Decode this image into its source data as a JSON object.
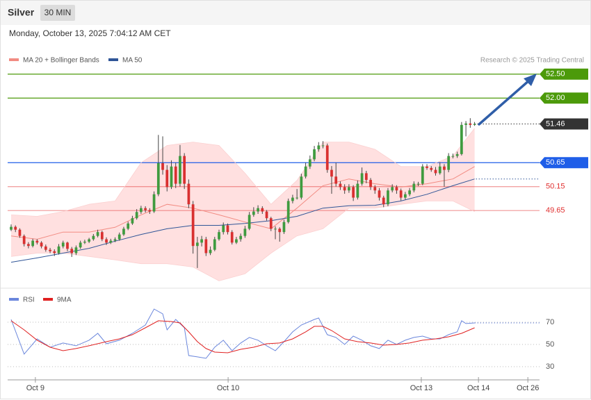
{
  "chart_data": {
    "type": "candlestick",
    "title": "Silver",
    "interval": "30 MIN",
    "timestamp": "Monday, October 13, 2025 7:04:12 AM CET",
    "source": "Research © 2025 Trading Central",
    "xlim": [
      -0.8,
      122
    ],
    "xticks": [
      {
        "value": 5.6,
        "label": "Oct 9"
      },
      {
        "value": 50.1,
        "label": "Oct 10"
      },
      {
        "value": 94.7,
        "label": "Oct 13"
      },
      {
        "value": 107.9,
        "label": "Oct 14"
      },
      {
        "value": 119.3,
        "label": "Oct 26"
      }
    ],
    "ylim": [
      48.1,
      52.7
    ],
    "up_color": "#3f9b3f",
    "down_color": "#d93030",
    "ohlc": [
      [
        49.25,
        49.36,
        49.22,
        49.31
      ],
      [
        49.31,
        49.34,
        49.2,
        49.25
      ],
      [
        49.25,
        49.28,
        49.08,
        49.12
      ],
      [
        49.12,
        49.15,
        48.9,
        48.95
      ],
      [
        48.95,
        48.99,
        48.86,
        48.91
      ],
      [
        48.91,
        49.06,
        48.88,
        49.02
      ],
      [
        49.02,
        49.05,
        48.94,
        48.98
      ],
      [
        48.98,
        49.01,
        48.86,
        48.9
      ],
      [
        48.9,
        48.94,
        48.79,
        48.83
      ],
      [
        48.83,
        48.87,
        48.76,
        48.8
      ],
      [
        48.8,
        48.84,
        48.7,
        48.76
      ],
      [
        48.76,
        48.95,
        48.73,
        48.9
      ],
      [
        48.9,
        49.02,
        48.86,
        48.98
      ],
      [
        48.98,
        49.0,
        48.8,
        48.85
      ],
      [
        48.85,
        48.89,
        48.68,
        48.76
      ],
      [
        48.76,
        48.92,
        48.72,
        48.88
      ],
      [
        48.88,
        49.02,
        48.85,
        48.98
      ],
      [
        48.98,
        49.04,
        48.95,
        49.0
      ],
      [
        49.0,
        49.08,
        48.97,
        49.05
      ],
      [
        49.05,
        49.16,
        49.02,
        49.12
      ],
      [
        49.12,
        49.25,
        49.09,
        49.2
      ],
      [
        49.2,
        49.23,
        49.01,
        49.05
      ],
      [
        49.05,
        49.09,
        48.93,
        48.98
      ],
      [
        48.98,
        49.06,
        48.95,
        49.02
      ],
      [
        49.02,
        49.09,
        48.99,
        49.05
      ],
      [
        49.05,
        49.19,
        49.02,
        49.15
      ],
      [
        49.15,
        49.31,
        49.12,
        49.27
      ],
      [
        49.27,
        49.42,
        49.24,
        49.38
      ],
      [
        49.38,
        49.54,
        49.35,
        49.49
      ],
      [
        49.49,
        49.68,
        49.46,
        49.62
      ],
      [
        49.62,
        49.75,
        49.58,
        49.7
      ],
      [
        49.7,
        49.74,
        49.61,
        49.66
      ],
      [
        49.66,
        49.7,
        49.58,
        49.63
      ],
      [
        49.63,
        50.05,
        49.6,
        49.99
      ],
      [
        49.99,
        51.23,
        49.95,
        50.64
      ],
      [
        50.64,
        51.2,
        50.4,
        50.5
      ],
      [
        50.5,
        50.6,
        50.05,
        50.14
      ],
      [
        50.14,
        50.7,
        50.1,
        50.57
      ],
      [
        50.57,
        50.65,
        50.12,
        50.21
      ],
      [
        50.21,
        51.02,
        50.15,
        50.79
      ],
      [
        50.79,
        50.85,
        50.1,
        50.21
      ],
      [
        50.21,
        50.3,
        49.7,
        49.78
      ],
      [
        49.78,
        49.85,
        48.75,
        48.91
      ],
      [
        48.91,
        49.1,
        48.45,
        48.98
      ],
      [
        48.98,
        49.12,
        48.9,
        49.05
      ],
      [
        49.05,
        49.1,
        48.7,
        48.76
      ],
      [
        48.76,
        48.9,
        48.72,
        48.83
      ],
      [
        48.83,
        49.1,
        48.8,
        49.05
      ],
      [
        49.05,
        49.25,
        49.02,
        49.2
      ],
      [
        49.2,
        49.4,
        49.15,
        49.34
      ],
      [
        49.34,
        49.38,
        49.15,
        49.2
      ],
      [
        49.2,
        49.24,
        48.94,
        48.98
      ],
      [
        48.98,
        49.1,
        48.95,
        49.05
      ],
      [
        49.05,
        49.17,
        49.0,
        49.12
      ],
      [
        49.12,
        49.33,
        49.08,
        49.27
      ],
      [
        49.27,
        49.62,
        49.24,
        49.56
      ],
      [
        49.56,
        49.72,
        49.52,
        49.63
      ],
      [
        49.63,
        49.76,
        49.58,
        49.7
      ],
      [
        49.7,
        49.74,
        49.58,
        49.63
      ],
      [
        49.63,
        49.66,
        49.44,
        49.49
      ],
      [
        49.49,
        49.52,
        49.22,
        49.27
      ],
      [
        49.27,
        49.32,
        49.05,
        49.27
      ],
      [
        49.27,
        49.3,
        49.0,
        49.2
      ],
      [
        49.2,
        49.46,
        49.16,
        49.41
      ],
      [
        49.41,
        49.9,
        49.38,
        49.85
      ],
      [
        49.85,
        49.98,
        49.8,
        49.92
      ],
      [
        49.92,
        50.1,
        49.88,
        49.92
      ],
      [
        49.92,
        50.42,
        49.88,
        50.36
      ],
      [
        50.36,
        50.65,
        50.32,
        50.57
      ],
      [
        50.57,
        50.8,
        50.52,
        50.72
      ],
      [
        50.72,
        51.0,
        50.68,
        50.93
      ],
      [
        50.93,
        51.08,
        50.88,
        51.01
      ],
      [
        51.01,
        51.1,
        50.95,
        51.01
      ],
      [
        51.01,
        51.05,
        50.44,
        50.5
      ],
      [
        50.5,
        50.58,
        50.0,
        50.36
      ],
      [
        50.36,
        50.65,
        50.15,
        50.21
      ],
      [
        50.21,
        50.26,
        50.08,
        50.14
      ],
      [
        50.14,
        50.2,
        50.0,
        50.07
      ],
      [
        50.07,
        50.2,
        50.02,
        50.14
      ],
      [
        50.14,
        50.18,
        49.85,
        49.92
      ],
      [
        49.92,
        50.28,
        49.88,
        50.21
      ],
      [
        50.21,
        50.55,
        50.17,
        50.43
      ],
      [
        50.43,
        50.48,
        50.22,
        50.29
      ],
      [
        50.29,
        50.33,
        50.08,
        50.14
      ],
      [
        50.14,
        50.18,
        50.0,
        50.07
      ],
      [
        50.07,
        50.12,
        49.86,
        49.92
      ],
      [
        49.92,
        49.96,
        49.72,
        49.78
      ],
      [
        49.78,
        50.12,
        49.74,
        50.07
      ],
      [
        50.07,
        50.2,
        50.03,
        50.14
      ],
      [
        50.14,
        50.18,
        50.0,
        50.07
      ],
      [
        50.07,
        50.11,
        49.86,
        49.92
      ],
      [
        49.92,
        50.04,
        49.88,
        49.99
      ],
      [
        49.99,
        50.12,
        49.95,
        50.07
      ],
      [
        50.07,
        50.26,
        50.03,
        50.21
      ],
      [
        50.21,
        50.25,
        50.16,
        50.21
      ],
      [
        50.21,
        50.62,
        50.18,
        50.57
      ],
      [
        50.57,
        50.62,
        50.5,
        50.54
      ],
      [
        50.54,
        50.58,
        50.46,
        50.5
      ],
      [
        50.5,
        50.56,
        50.38,
        50.43
      ],
      [
        50.43,
        50.66,
        50.4,
        50.57
      ],
      [
        50.57,
        50.62,
        50.15,
        50.5
      ],
      [
        50.5,
        50.85,
        50.45,
        50.79
      ],
      [
        50.79,
        50.84,
        50.74,
        50.79
      ],
      [
        50.79,
        50.88,
        50.75,
        50.83
      ],
      [
        50.83,
        51.5,
        50.8,
        51.44
      ],
      [
        51.44,
        51.52,
        51.2,
        51.47
      ],
      [
        51.47,
        51.58,
        51.38,
        51.44
      ],
      [
        51.44,
        51.5,
        51.42,
        51.46
      ]
    ],
    "overlays": {
      "x": [
        0,
        6,
        12,
        18,
        24,
        30,
        36,
        42,
        48,
        54,
        60,
        66,
        72,
        78,
        84,
        90,
        96,
        102,
        107
      ],
      "band_color": "#ffe0e0",
      "upper": [
        49.56,
        49.53,
        49.63,
        49.78,
        49.85,
        50.65,
        51.01,
        51.08,
        51.01,
        50.43,
        49.78,
        50.28,
        51.08,
        51.08,
        50.93,
        50.57,
        50.57,
        50.79,
        51.37
      ],
      "lower": [
        48.69,
        48.76,
        48.76,
        48.69,
        48.62,
        48.54,
        48.54,
        48.47,
        48.18,
        48.33,
        48.76,
        49.12,
        49.27,
        49.7,
        49.7,
        49.78,
        49.85,
        49.85,
        49.63
      ],
      "ma20": {
        "name": "MA 20 + Bollinger Bands",
        "color": "#f28b82",
        "values": [
          49.12,
          49.05,
          49.2,
          49.2,
          49.3,
          49.56,
          49.78,
          49.7,
          49.56,
          49.41,
          49.27,
          49.7,
          50.17,
          50.31,
          50.21,
          50.14,
          50.21,
          50.31,
          50.57
        ]
      },
      "ma50": {
        "name": "MA 50",
        "color": "#2f5597",
        "values": [
          48.57,
          48.66,
          48.76,
          48.86,
          49.01,
          49.15,
          49.27,
          49.34,
          49.34,
          49.38,
          49.44,
          49.53,
          49.7,
          49.75,
          49.76,
          49.85,
          49.99,
          50.17,
          50.31
        ]
      }
    },
    "levels": [
      {
        "value": 52.5,
        "label": "52.50",
        "color": "#4c9a0a",
        "filled": true,
        "line": "solid"
      },
      {
        "value": 52.0,
        "label": "52.00",
        "color": "#4c9a0a",
        "filled": true,
        "line": "solid"
      },
      {
        "value": 51.46,
        "label": "51.46",
        "color": "#333333",
        "filled": true,
        "line": "dotted"
      },
      {
        "value": 50.65,
        "label": "50.65",
        "color": "#1f5ee8",
        "filled": true,
        "line": "solid"
      },
      {
        "value": 50.15,
        "label": "50.15",
        "color": "#e03030",
        "filled": false,
        "line": "solid"
      },
      {
        "value": 49.65,
        "label": "49.65",
        "color": "#e03030",
        "filled": false,
        "line": "solid"
      }
    ],
    "rsi": {
      "ylim": [
        18,
        86
      ],
      "yticks": [
        30,
        50,
        70
      ],
      "name": "RSI",
      "color": "#6a86dc",
      "x": [
        0,
        3,
        6,
        9,
        12,
        15,
        18,
        20,
        22,
        25,
        28,
        31,
        33,
        35,
        36,
        38,
        40,
        41,
        43,
        45,
        47,
        49,
        51,
        53,
        55,
        57,
        59,
        61,
        63,
        65,
        67,
        70,
        71,
        73,
        75,
        77,
        79,
        81,
        83,
        85,
        87,
        89,
        91,
        93,
        95,
        97,
        99,
        101,
        103,
        104,
        105,
        107
      ],
      "values": [
        72.5,
        41.3,
        55,
        47.5,
        51.3,
        48.8,
        53.8,
        60,
        50.6,
        53.8,
        60,
        67.5,
        81.9,
        77.5,
        63.1,
        72.5,
        65,
        40,
        38.8,
        37.5,
        47.5,
        53.8,
        44.4,
        51.3,
        56.3,
        53.8,
        48.8,
        44.4,
        52.5,
        61.3,
        67.5,
        72.5,
        73.8,
        58.8,
        56.3,
        50,
        57.5,
        53.8,
        48.8,
        46.3,
        53.8,
        50,
        53.8,
        56.3,
        57.5,
        55,
        55,
        58.8,
        61.3,
        71.3,
        68.8,
        69.4
      ],
      "ma": {
        "name": "9MA",
        "color": "#e02020",
        "x": [
          0,
          3,
          6,
          9,
          12,
          15,
          18,
          22,
          25,
          28,
          31,
          34,
          37,
          39,
          41,
          43,
          45,
          47,
          50,
          53,
          56,
          59,
          62,
          65,
          68,
          70,
          72,
          74,
          77,
          80,
          83,
          86,
          89,
          92,
          95,
          98,
          101,
          104,
          107
        ],
        "values": [
          71.3,
          63.1,
          53.8,
          47.5,
          44.4,
          46.3,
          48.8,
          52.5,
          55,
          58.8,
          65,
          71.3,
          70.6,
          69.4,
          61.3,
          52.5,
          46.3,
          43.1,
          42.5,
          45.6,
          47.5,
          50.6,
          51.3,
          55,
          61.3,
          66.3,
          66.3,
          62.5,
          55,
          52.5,
          51.3,
          49.4,
          50,
          51.3,
          53.8,
          55,
          56.9,
          60,
          65
        ]
      }
    }
  }
}
